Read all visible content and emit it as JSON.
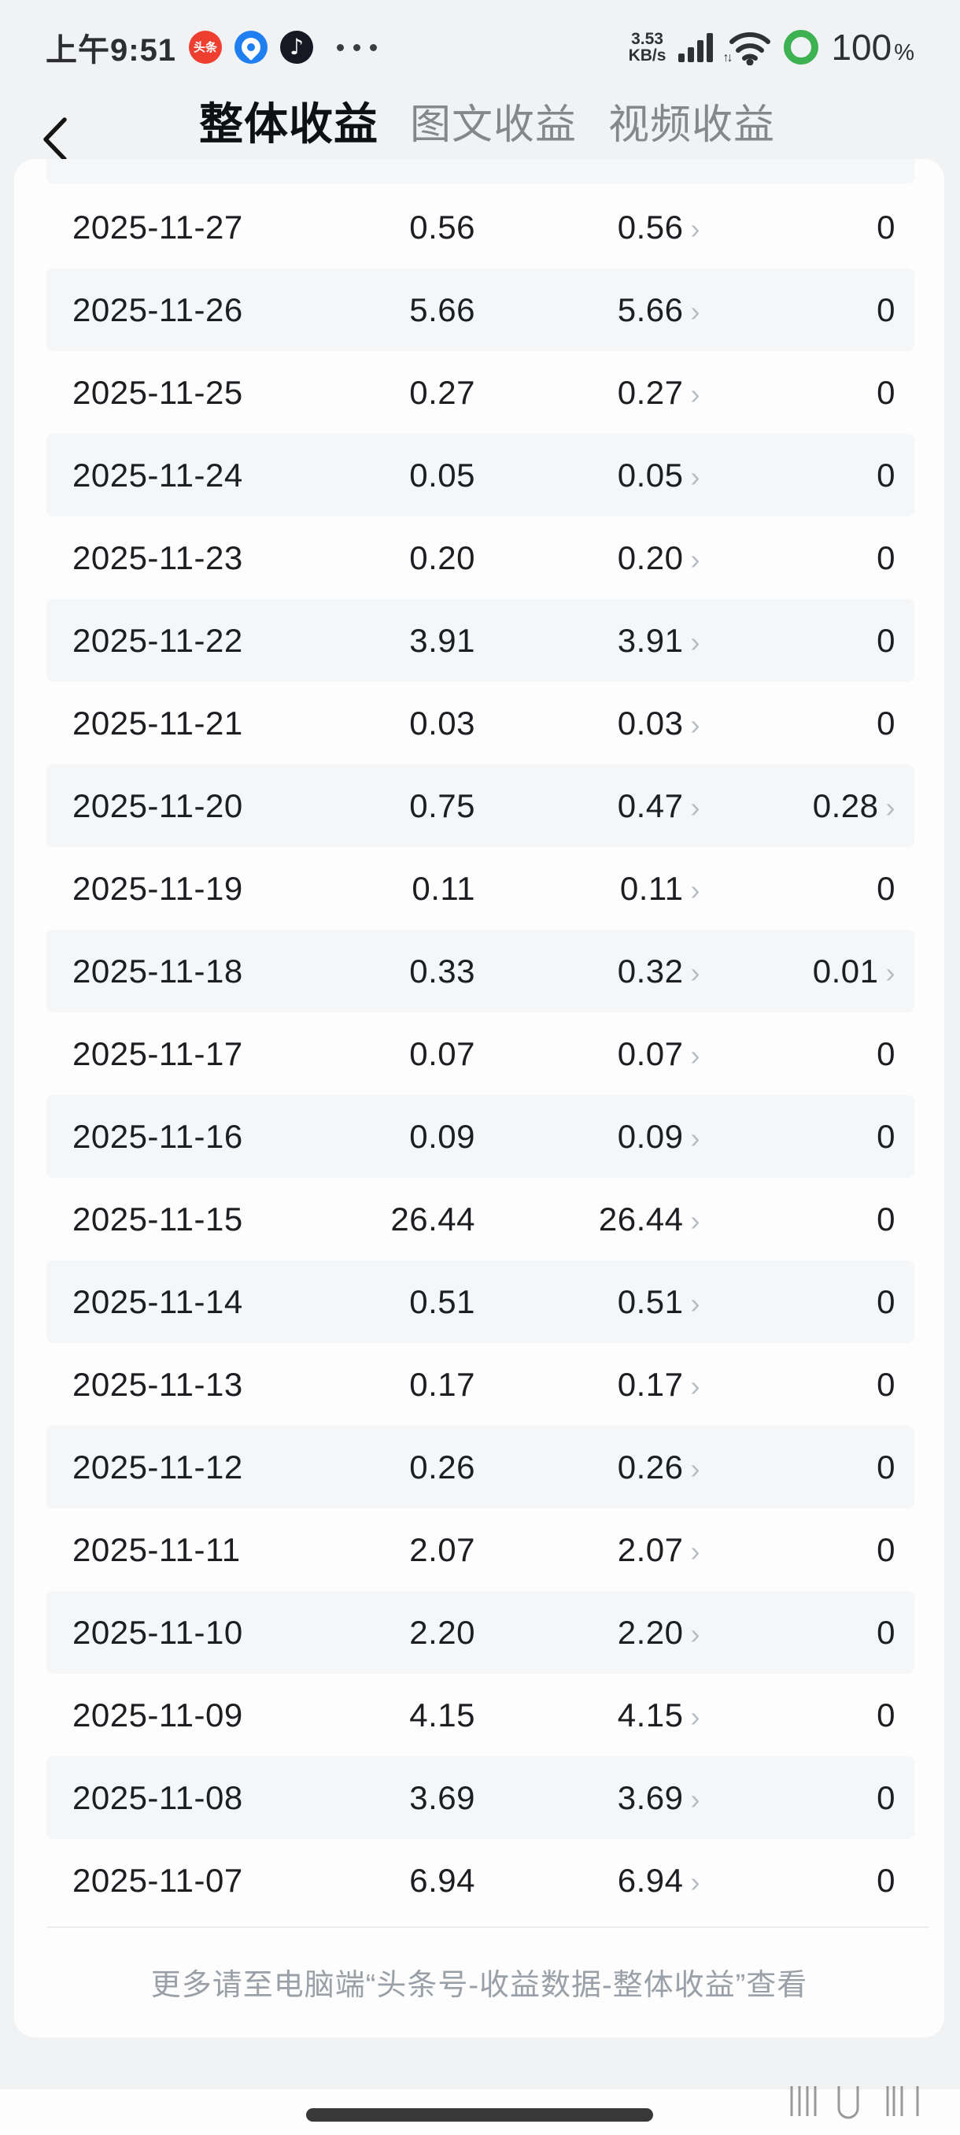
{
  "status_bar": {
    "time": "上午9:51",
    "toutiao_badge_text": "头条",
    "douyin_glyph": "♪",
    "network_speed_value": "3.53",
    "network_speed_unit": "KB/s",
    "traffic_arrows": "↑↓",
    "battery_percent_number": "100",
    "battery_percent_sign": "%"
  },
  "nav": {
    "back_icon": "chevron-left",
    "tabs": [
      {
        "label": "整体收益",
        "active": true
      },
      {
        "label": "图文收益",
        "active": false
      },
      {
        "label": "视频收益",
        "active": false
      }
    ]
  },
  "table": {
    "chevron_glyph": "›",
    "rows": [
      {
        "date": "2025-11-27",
        "total": "0.56",
        "article": "0.56",
        "video": "0",
        "video_link": false
      },
      {
        "date": "2025-11-26",
        "total": "5.66",
        "article": "5.66",
        "video": "0",
        "video_link": false
      },
      {
        "date": "2025-11-25",
        "total": "0.27",
        "article": "0.27",
        "video": "0",
        "video_link": false
      },
      {
        "date": "2025-11-24",
        "total": "0.05",
        "article": "0.05",
        "video": "0",
        "video_link": false
      },
      {
        "date": "2025-11-23",
        "total": "0.20",
        "article": "0.20",
        "video": "0",
        "video_link": false
      },
      {
        "date": "2025-11-22",
        "total": "3.91",
        "article": "3.91",
        "video": "0",
        "video_link": false
      },
      {
        "date": "2025-11-21",
        "total": "0.03",
        "article": "0.03",
        "video": "0",
        "video_link": false
      },
      {
        "date": "2025-11-20",
        "total": "0.75",
        "article": "0.47",
        "video": "0.28",
        "video_link": true
      },
      {
        "date": "2025-11-19",
        "total": "0.11",
        "article": "0.11",
        "video": "0",
        "video_link": false
      },
      {
        "date": "2025-11-18",
        "total": "0.33",
        "article": "0.32",
        "video": "0.01",
        "video_link": true
      },
      {
        "date": "2025-11-17",
        "total": "0.07",
        "article": "0.07",
        "video": "0",
        "video_link": false
      },
      {
        "date": "2025-11-16",
        "total": "0.09",
        "article": "0.09",
        "video": "0",
        "video_link": false
      },
      {
        "date": "2025-11-15",
        "total": "26.44",
        "article": "26.44",
        "video": "0",
        "video_link": false
      },
      {
        "date": "2025-11-14",
        "total": "0.51",
        "article": "0.51",
        "video": "0",
        "video_link": false
      },
      {
        "date": "2025-11-13",
        "total": "0.17",
        "article": "0.17",
        "video": "0",
        "video_link": false
      },
      {
        "date": "2025-11-12",
        "total": "0.26",
        "article": "0.26",
        "video": "0",
        "video_link": false
      },
      {
        "date": "2025-11-11",
        "total": "2.07",
        "article": "2.07",
        "video": "0",
        "video_link": false
      },
      {
        "date": "2025-11-10",
        "total": "2.20",
        "article": "2.20",
        "video": "0",
        "video_link": false
      },
      {
        "date": "2025-11-09",
        "total": "4.15",
        "article": "4.15",
        "video": "0",
        "video_link": false
      },
      {
        "date": "2025-11-08",
        "total": "3.69",
        "article": "3.69",
        "video": "0",
        "video_link": false
      },
      {
        "date": "2025-11-07",
        "total": "6.94",
        "article": "6.94",
        "video": "0",
        "video_link": false
      }
    ]
  },
  "footer": {
    "note": "更多请至电脑端“头条号-收益数据-整体收益”查看"
  },
  "colors": {
    "battery_green": "#3eb152",
    "toutiao_red": "#ee3e30",
    "browser_blue": "#1f7ff0",
    "active_tab": "#0f1012",
    "inactive_tab": "#85878a",
    "row_alt": "#f5f6f8",
    "chevron_gray": "#b8bcc3"
  }
}
